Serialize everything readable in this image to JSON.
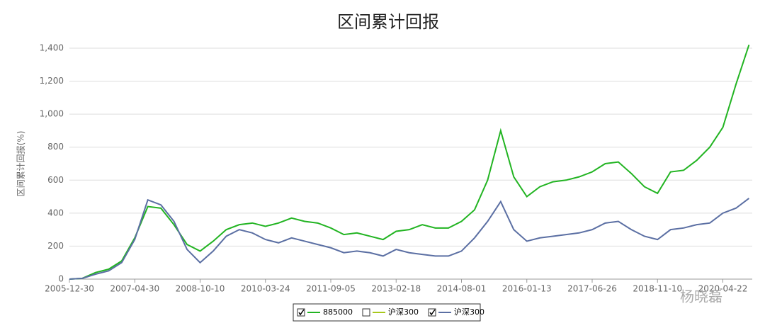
{
  "chart_data": {
    "type": "line",
    "title": "区间累计回报",
    "y_label": "区间累计回报(%)",
    "categories": [
      "2005-12-30",
      null,
      null,
      null,
      null,
      "2007-04-30",
      null,
      null,
      null,
      null,
      "2008-10-10",
      null,
      null,
      null,
      null,
      "2010-03-24",
      null,
      null,
      null,
      null,
      "2011-09-05",
      null,
      null,
      null,
      null,
      "2013-02-18",
      null,
      null,
      null,
      null,
      "2014-08-01",
      null,
      null,
      null,
      null,
      "2016-01-13",
      null,
      null,
      null,
      null,
      "2017-06-26",
      null,
      null,
      null,
      null,
      "2018-11-10",
      null,
      null,
      null,
      null,
      "2020-04-22",
      null,
      null
    ],
    "series": [
      {
        "color": "#22b422",
        "values": [
          0,
          5,
          40,
          60,
          110,
          250,
          440,
          430,
          330,
          210,
          170,
          230,
          300,
          330,
          340,
          320,
          340,
          370,
          350,
          340,
          310,
          270,
          280,
          260,
          240,
          290,
          300,
          330,
          310,
          310,
          350,
          420,
          600,
          900,
          620,
          500,
          560,
          590,
          600,
          620,
          650,
          700,
          710,
          640,
          560,
          520,
          650,
          660,
          720,
          800,
          920,
          1180,
          1420
        ]
      },
      {
        "color": "#5b6fa3",
        "values": [
          0,
          5,
          30,
          50,
          100,
          240,
          480,
          450,
          350,
          180,
          100,
          170,
          260,
          300,
          280,
          240,
          220,
          250,
          230,
          210,
          190,
          160,
          170,
          160,
          140,
          180,
          160,
          150,
          140,
          140,
          170,
          250,
          350,
          470,
          300,
          230,
          250,
          260,
          270,
          280,
          300,
          340,
          350,
          300,
          260,
          240,
          300,
          310,
          330,
          340,
          400,
          430,
          490
        ]
      }
    ],
    "legend": [
      {
        "name": "885000",
        "color": "#22b422",
        "checked": true
      },
      {
        "name": "沪深300",
        "color": "#a8c81c",
        "checked": false
      },
      {
        "name": "沪深300",
        "color": "#5b6fa3",
        "checked": true
      }
    ],
    "ylim": [
      0,
      1400
    ],
    "yticks": [
      0,
      200,
      400,
      600,
      800,
      {
        "value": 1000,
        "label": "1,000"
      },
      {
        "value": 1200,
        "label": "1,200"
      },
      {
        "value": 1400,
        "label": "1,400"
      }
    ],
    "grid": true,
    "watermark": "杨晓磊"
  }
}
